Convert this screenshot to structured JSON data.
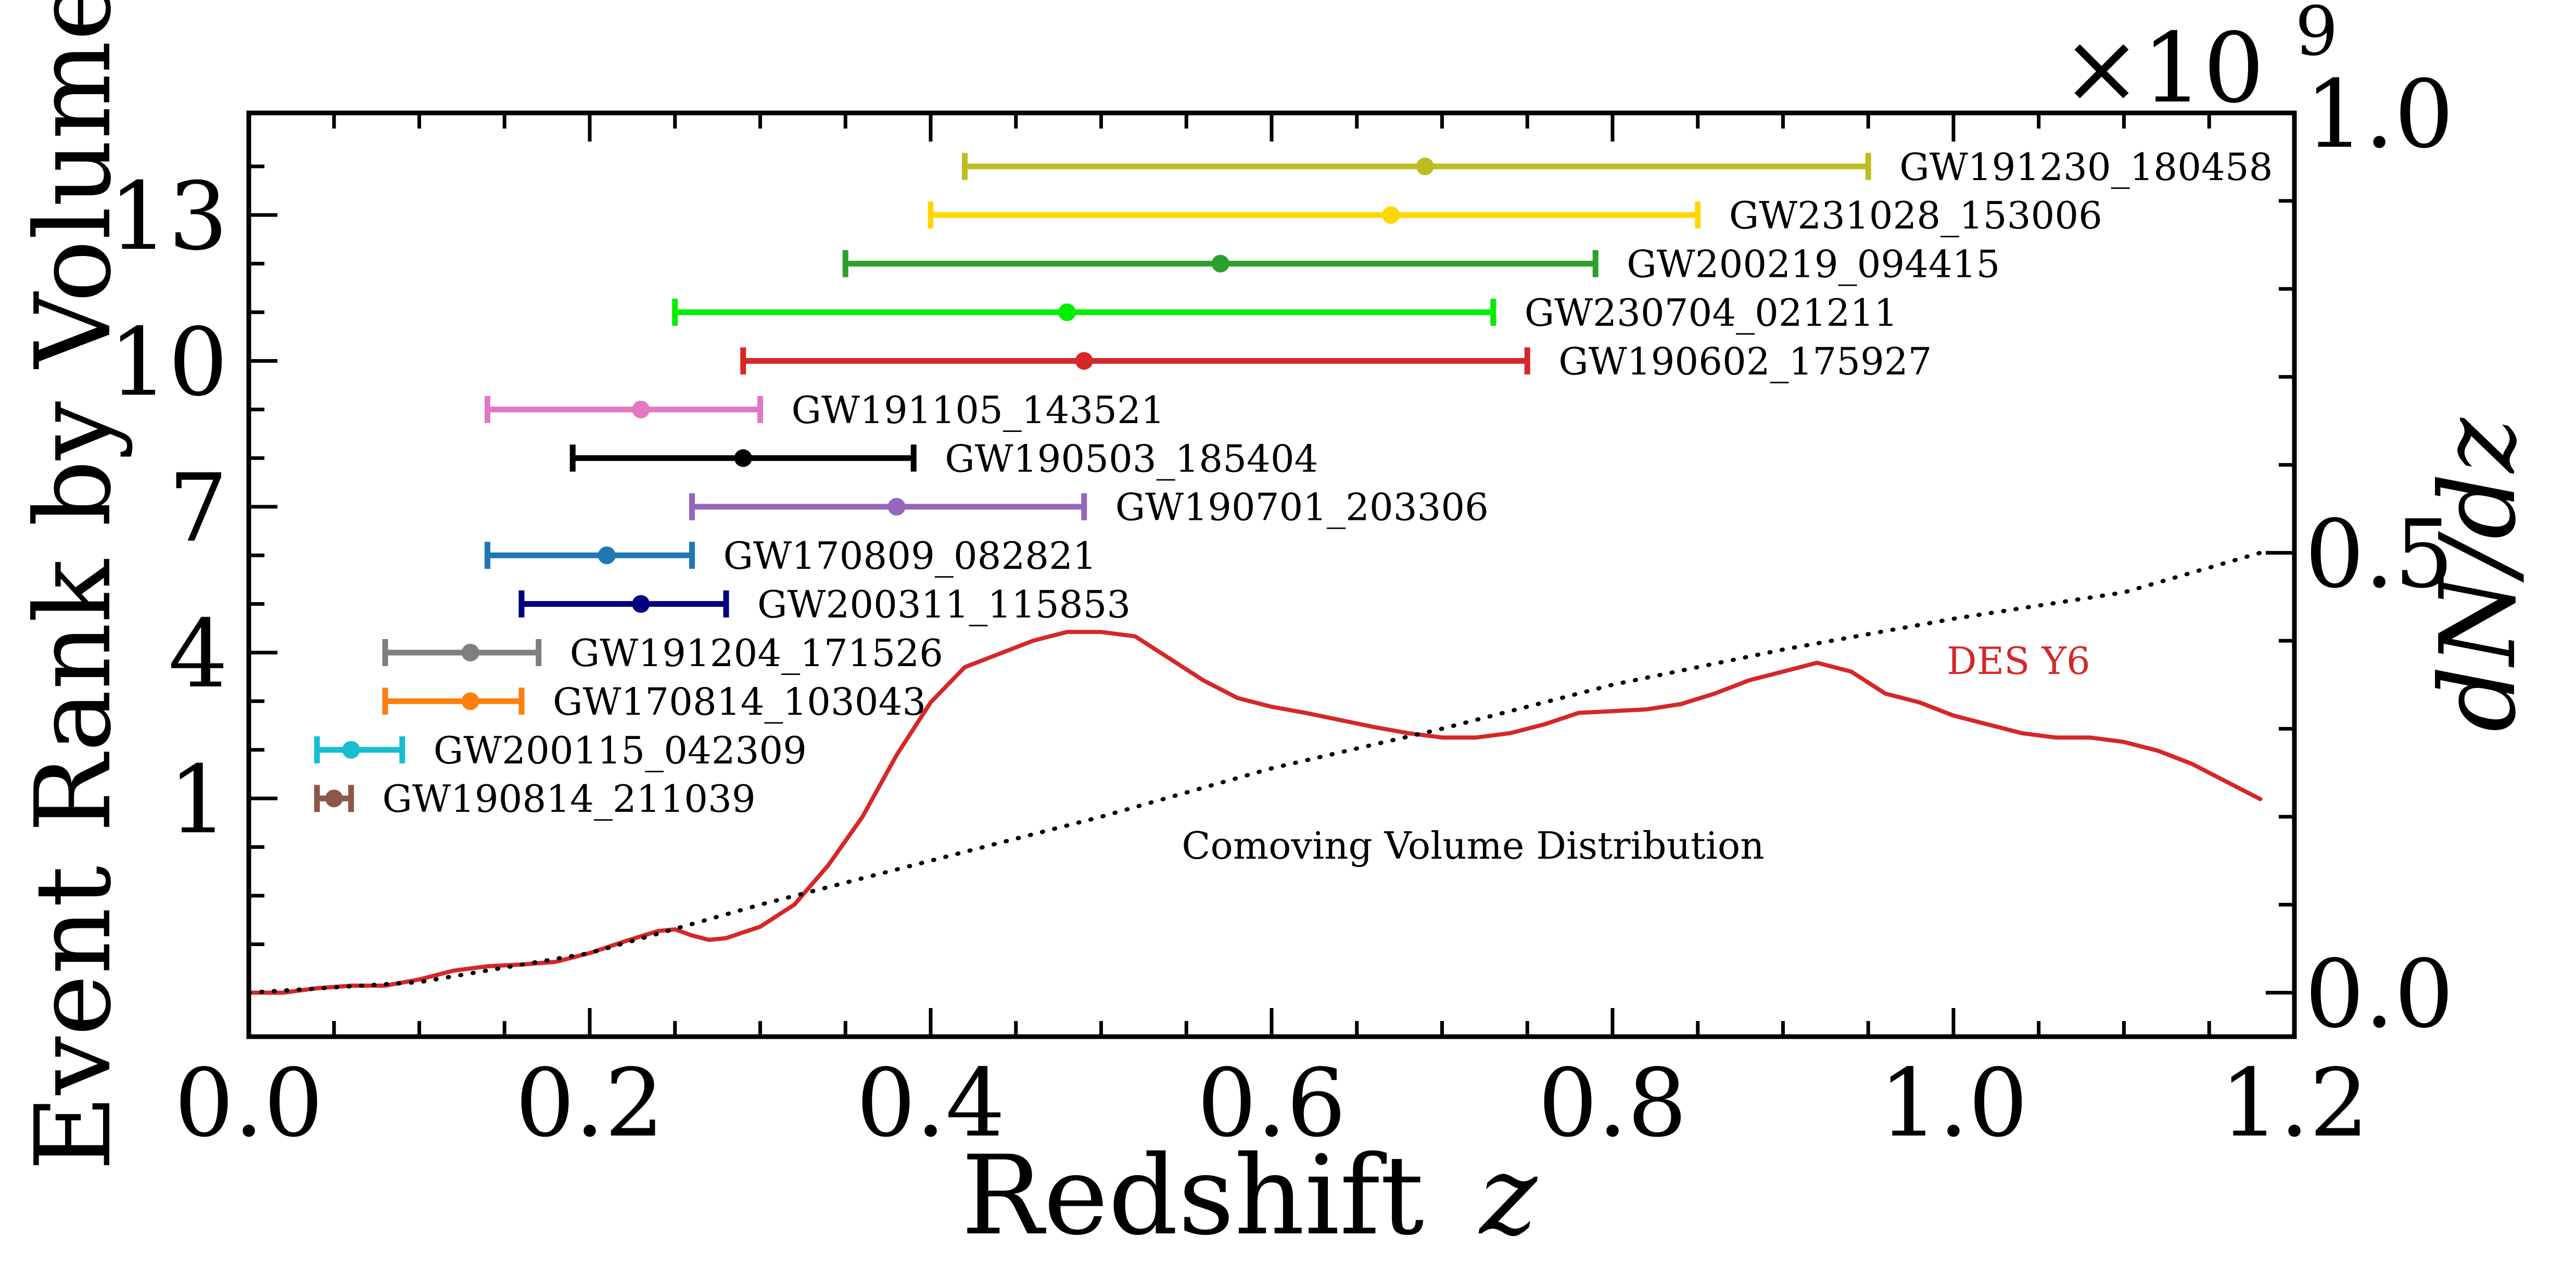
{
  "chart_data": {
    "type": "scatter",
    "title": "",
    "xlabel": "Redshift",
    "xlabel_symbol": "z",
    "ylabel_left": "Event Rank by Volume",
    "ylabel_right": "dN/dz",
    "right_axis_multiplier": "×10",
    "right_axis_exponent": "9",
    "xlim": [
      0.0,
      1.2
    ],
    "ylim_left": [
      -3.9,
      15.1
    ],
    "ylim_right": [
      -0.05,
      1.0
    ],
    "x_ticks": [
      "0.0",
      "0.2",
      "0.4",
      "0.6",
      "0.8",
      "1.0",
      "1.2"
    ],
    "y_left_ticks": [
      "1",
      "4",
      "7",
      "10",
      "13"
    ],
    "y_right_ticks": [
      "0.0",
      "0.5",
      "1.0"
    ],
    "events": [
      {
        "name": "GW190814_211039",
        "rank": 1,
        "z": 0.05,
        "z_low": 0.04,
        "z_high": 0.06,
        "color": "#8c564b"
      },
      {
        "name": "GW200115_042309",
        "rank": 2,
        "z": 0.06,
        "z_low": 0.04,
        "z_high": 0.09,
        "color": "#17becf"
      },
      {
        "name": "GW170814_103043",
        "rank": 3,
        "z": 0.13,
        "z_low": 0.08,
        "z_high": 0.16,
        "color": "#ff7f0e"
      },
      {
        "name": "GW191204_171526",
        "rank": 4,
        "z": 0.13,
        "z_low": 0.08,
        "z_high": 0.17,
        "color": "#7f7f7f"
      },
      {
        "name": "GW200311_115853",
        "rank": 5,
        "z": 0.23,
        "z_low": 0.16,
        "z_high": 0.28,
        "color": "#000080"
      },
      {
        "name": "GW170809_082821",
        "rank": 6,
        "z": 0.21,
        "z_low": 0.14,
        "z_high": 0.26,
        "color": "#1f77b4"
      },
      {
        "name": "GW190701_203306",
        "rank": 7,
        "z": 0.38,
        "z_low": 0.26,
        "z_high": 0.49,
        "color": "#9467bd"
      },
      {
        "name": "GW190503_185404",
        "rank": 8,
        "z": 0.29,
        "z_low": 0.19,
        "z_high": 0.39,
        "color": "#000000"
      },
      {
        "name": "GW191105_143521",
        "rank": 9,
        "z": 0.23,
        "z_low": 0.14,
        "z_high": 0.3,
        "color": "#e377c2"
      },
      {
        "name": "GW190602_175927",
        "rank": 10,
        "z": 0.49,
        "z_low": 0.29,
        "z_high": 0.75,
        "color": "#d62728"
      },
      {
        "name": "GW230704_021211",
        "rank": 11,
        "z": 0.48,
        "z_low": 0.25,
        "z_high": 0.73,
        "color": "#00ee00"
      },
      {
        "name": "GW200219_094415",
        "rank": 12,
        "z": 0.57,
        "z_low": 0.35,
        "z_high": 0.79,
        "color": "#2ca02c"
      },
      {
        "name": "GW231028_153006",
        "rank": 13,
        "z": 0.67,
        "z_low": 0.4,
        "z_high": 0.85,
        "color": "#ffd700"
      },
      {
        "name": "GW191230_180458",
        "rank": 14,
        "z": 0.69,
        "z_low": 0.42,
        "z_high": 0.95,
        "color": "#bcbd22"
      }
    ],
    "series": [
      {
        "name": "DES Y6",
        "color": "#d62728",
        "style": "solid",
        "x": [
          0.0,
          0.02,
          0.04,
          0.06,
          0.08,
          0.1,
          0.12,
          0.14,
          0.16,
          0.18,
          0.2,
          0.22,
          0.24,
          0.25,
          0.26,
          0.27,
          0.28,
          0.3,
          0.32,
          0.34,
          0.36,
          0.38,
          0.4,
          0.42,
          0.44,
          0.46,
          0.48,
          0.5,
          0.52,
          0.54,
          0.56,
          0.58,
          0.6,
          0.62,
          0.64,
          0.66,
          0.68,
          0.7,
          0.72,
          0.74,
          0.76,
          0.78,
          0.8,
          0.82,
          0.84,
          0.86,
          0.88,
          0.9,
          0.92,
          0.94,
          0.96,
          0.98,
          1.0,
          1.02,
          1.04,
          1.06,
          1.08,
          1.1,
          1.12,
          1.14,
          1.16,
          1.18
        ],
        "y": [
          0.0,
          0.0,
          0.005,
          0.008,
          0.008,
          0.015,
          0.025,
          0.03,
          0.032,
          0.035,
          0.045,
          0.058,
          0.07,
          0.072,
          0.065,
          0.06,
          0.062,
          0.075,
          0.1,
          0.145,
          0.2,
          0.27,
          0.33,
          0.37,
          0.385,
          0.4,
          0.41,
          0.41,
          0.405,
          0.38,
          0.355,
          0.335,
          0.325,
          0.318,
          0.31,
          0.302,
          0.295,
          0.29,
          0.29,
          0.295,
          0.305,
          0.318,
          0.32,
          0.322,
          0.328,
          0.34,
          0.355,
          0.365,
          0.375,
          0.365,
          0.34,
          0.33,
          0.315,
          0.305,
          0.295,
          0.29,
          0.29,
          0.285,
          0.275,
          0.26,
          0.24,
          0.22
        ]
      },
      {
        "name": "Comoving Volume Distribution",
        "color": "#000000",
        "style": "dotted",
        "x": [
          0.0,
          0.1,
          0.2,
          0.3,
          0.4,
          0.5,
          0.6,
          0.7,
          0.8,
          0.9,
          1.0,
          1.1,
          1.18
        ],
        "y": [
          0.0,
          0.012,
          0.045,
          0.1,
          0.15,
          0.2,
          0.255,
          0.3,
          0.35,
          0.39,
          0.425,
          0.455,
          0.5
        ]
      }
    ],
    "annotations": {
      "des_label": "DES Y6",
      "volume_label": "Comoving Volume Distribution"
    }
  }
}
